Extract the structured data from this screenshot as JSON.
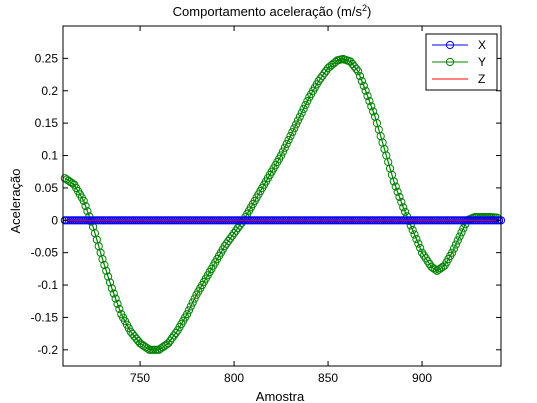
{
  "chart_data": {
    "type": "line",
    "title": "Comportamento aceleração (m/s",
    "title_sup": "2",
    "title_close": ")",
    "xlabel": "Amostra",
    "ylabel": "Aceleração",
    "xlim": [
      709,
      942
    ],
    "ylim": [
      -0.225,
      0.3
    ],
    "x_ticks": [
      750,
      800,
      850,
      900
    ],
    "x_tick_labels": [
      "750",
      "800",
      "850",
      "900"
    ],
    "y_ticks": [
      0.25,
      0.2,
      0.15,
      0.1,
      0.05,
      0,
      -0.05,
      -0.1,
      -0.15,
      -0.2
    ],
    "y_tick_labels": [
      "0.25",
      "0.2",
      "0.15",
      "0.1",
      "0.05",
      "0",
      "-0.05",
      "-0.1",
      "-0.15",
      "-0.2"
    ],
    "grid": false,
    "legend_position": "top-right",
    "series": [
      {
        "name": "X",
        "color": "#0000ff",
        "marker": "circle",
        "line": true,
        "points": [
          [
            710,
            0.0
          ],
          [
            942,
            0.0
          ]
        ]
      },
      {
        "name": "Y",
        "color": "#008000",
        "marker": "circle",
        "line": true,
        "points": [
          [
            710,
            0.065
          ],
          [
            715,
            0.055
          ],
          [
            720,
            0.03
          ],
          [
            725,
            -0.01
          ],
          [
            730,
            -0.06
          ],
          [
            735,
            -0.105
          ],
          [
            740,
            -0.145
          ],
          [
            745,
            -0.172
          ],
          [
            750,
            -0.19
          ],
          [
            755,
            -0.2
          ],
          [
            760,
            -0.2
          ],
          [
            765,
            -0.19
          ],
          [
            770,
            -0.17
          ],
          [
            775,
            -0.145
          ],
          [
            780,
            -0.115
          ],
          [
            785,
            -0.09
          ],
          [
            790,
            -0.065
          ],
          [
            795,
            -0.04
          ],
          [
            800,
            -0.02
          ],
          [
            805,
            0.0
          ],
          [
            810,
            0.025
          ],
          [
            815,
            0.05
          ],
          [
            820,
            0.075
          ],
          [
            825,
            0.1
          ],
          [
            830,
            0.13
          ],
          [
            835,
            0.16
          ],
          [
            840,
            0.19
          ],
          [
            845,
            0.215
          ],
          [
            850,
            0.235
          ],
          [
            855,
            0.247
          ],
          [
            858,
            0.249
          ],
          [
            862,
            0.245
          ],
          [
            866,
            0.23
          ],
          [
            870,
            0.2
          ],
          [
            875,
            0.16
          ],
          [
            880,
            0.11
          ],
          [
            885,
            0.06
          ],
          [
            890,
            0.02
          ],
          [
            895,
            -0.015
          ],
          [
            900,
            -0.05
          ],
          [
            905,
            -0.072
          ],
          [
            908,
            -0.078
          ],
          [
            912,
            -0.07
          ],
          [
            916,
            -0.05
          ],
          [
            920,
            -0.025
          ],
          [
            924,
            0.0
          ],
          [
            928,
            0.005
          ],
          [
            932,
            0.005
          ],
          [
            936,
            0.005
          ],
          [
            940,
            0.004
          ]
        ]
      },
      {
        "name": "Z",
        "color": "#ff0000",
        "marker": "none",
        "line": true,
        "points": [
          [
            710,
            0.0
          ],
          [
            942,
            0.0
          ]
        ]
      }
    ]
  }
}
